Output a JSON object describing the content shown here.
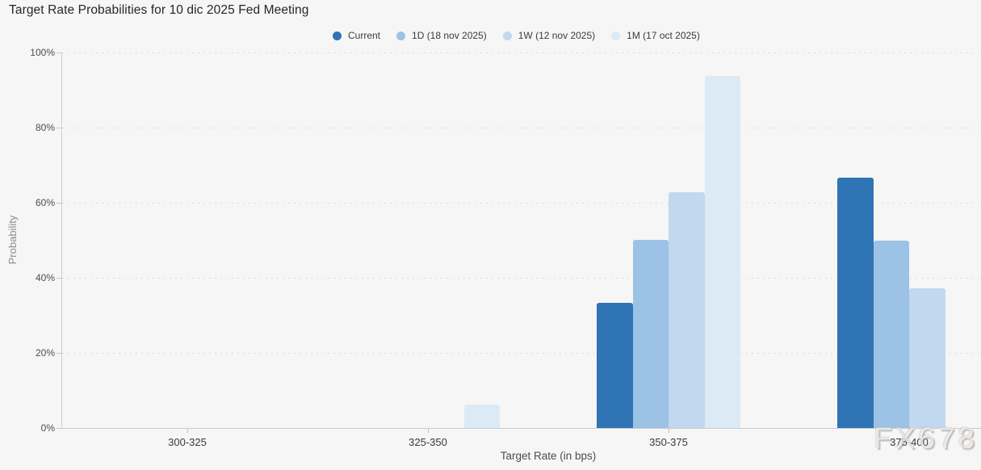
{
  "title": "Target Rate Probabilities for 10 dic 2025 Fed Meeting",
  "watermark": "FX678",
  "colors": {
    "background": "#f6f6f6",
    "axis": "#cccccc",
    "grid_dots": "#dcdcdc",
    "accent_dark_blue": "#2f74b5"
  },
  "chart_data": {
    "type": "bar",
    "title": "Target Rate Probabilities for 10 dic 2025 Fed Meeting",
    "xlabel": "Target Rate (in bps)",
    "ylabel": "Probability",
    "categories": [
      "300-325",
      "325-350",
      "350-375",
      "375-400"
    ],
    "series": [
      {
        "name": "Current",
        "color": "#2f74b5",
        "values": [
          0,
          0,
          33.4,
          66.6
        ]
      },
      {
        "name": "1D (18 nov 2025)",
        "color": "#9cc2e5",
        "values": [
          0,
          0,
          50.2,
          49.8
        ]
      },
      {
        "name": "1W (12 nov 2025)",
        "color": "#c1d8ee",
        "values": [
          0,
          0,
          62.7,
          37.3
        ]
      },
      {
        "name": "1M (17 oct 2025)",
        "color": "#dceaf6",
        "values": [
          0,
          6.3,
          93.7,
          0
        ]
      }
    ],
    "ylim": [
      0,
      100
    ],
    "yticks": [
      "0%",
      "20%",
      "40%",
      "60%",
      "80%",
      "100%"
    ],
    "grid": "horizontal-dotted",
    "legend_position": "top"
  }
}
